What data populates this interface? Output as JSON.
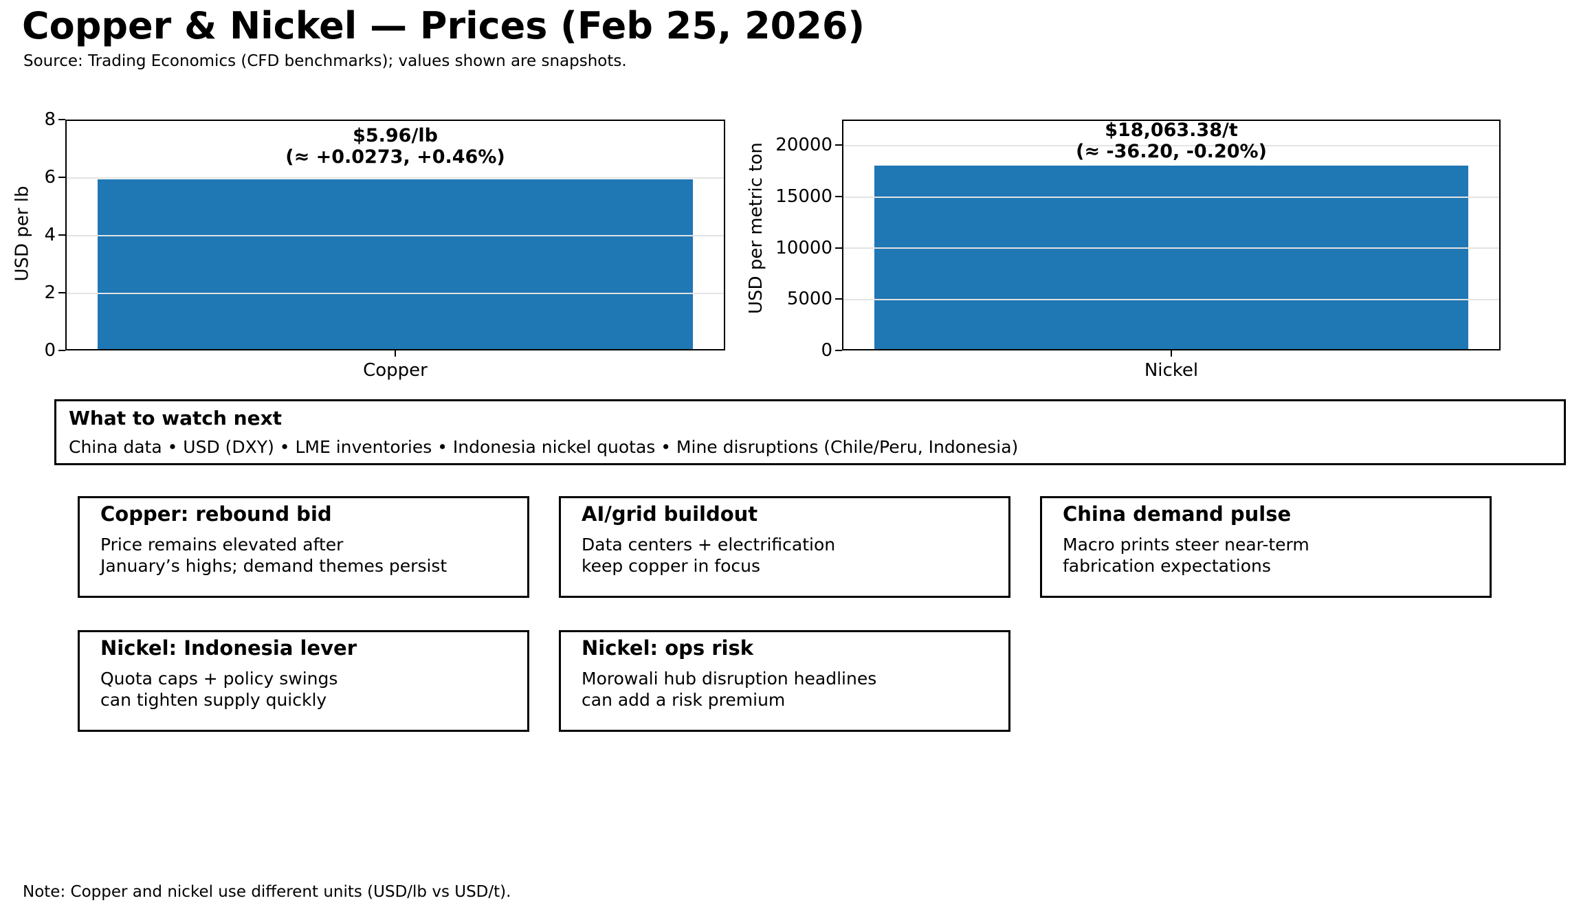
{
  "title": "Copper & Nickel — Prices (Feb 25, 2026)",
  "subtitle": "Source: Trading Economics (CFD benchmarks); values shown are snapshots.",
  "note": "Note: Copper and nickel use different units (USD/lb vs USD/t).",
  "colors": {
    "bar": "#1f77b4",
    "grid": "#e3e3e3",
    "frame": "#000000"
  },
  "chart_data": [
    {
      "type": "bar",
      "categories": [
        "Copper"
      ],
      "values": [
        5.96
      ],
      "title": "",
      "xlabel": "",
      "ylabel": "USD per lb",
      "ylim": [
        0,
        8
      ],
      "yticks": [
        0,
        2,
        4,
        6,
        8
      ],
      "ytick_labels_top_down": [
        "8",
        "6",
        "4",
        "2",
        "0"
      ],
      "grid": true,
      "annotation": [
        "$5.96/lb",
        "(≈ +0.0273, +0.46%)"
      ]
    },
    {
      "type": "bar",
      "categories": [
        "Nickel"
      ],
      "values": [
        18063.38
      ],
      "title": "",
      "xlabel": "",
      "ylabel": "USD per metric ton",
      "ylim": [
        0,
        22500
      ],
      "yticks": [
        0,
        5000,
        10000,
        15000,
        20000
      ],
      "ytick_labels_top_down": [
        "20000",
        "15000",
        "10000",
        "5000",
        "0"
      ],
      "grid": true,
      "annotation": [
        "$18,063.38/t",
        "(≈ -36.20, -0.20%)"
      ]
    }
  ],
  "watch_box": {
    "title": "What to watch next",
    "body": "China data • USD (DXY) • LME inventories • Indonesia nickel quotas • Mine disruptions (Chile/Peru, Indonesia)"
  },
  "cards": [
    {
      "title": "Copper: rebound bid",
      "lines": [
        "Price remains elevated after",
        "January’s highs; demand themes persist"
      ]
    },
    {
      "title": "AI/grid buildout",
      "lines": [
        "Data centers + electrification",
        "keep copper in focus"
      ]
    },
    {
      "title": "China demand pulse",
      "lines": [
        "Macro prints steer near-term",
        "fabrication expectations"
      ]
    },
    {
      "title": "Nickel: Indonesia lever",
      "lines": [
        "Quota caps + policy swings",
        "can tighten supply quickly"
      ]
    },
    {
      "title": "Nickel: ops risk",
      "lines": [
        "Morowali hub disruption headlines",
        "can add a risk premium"
      ]
    }
  ]
}
